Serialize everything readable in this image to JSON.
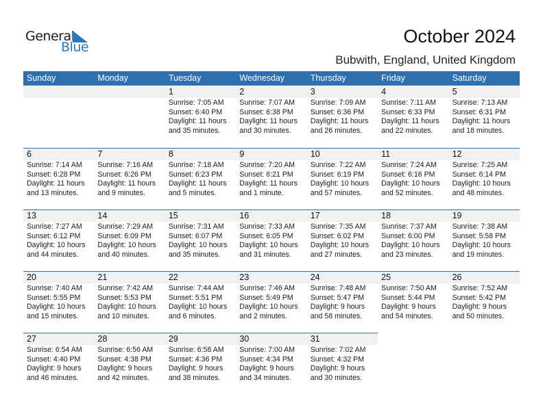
{
  "logo": {
    "text_general": "General",
    "text_blue": "Blue"
  },
  "title": "October 2024",
  "subtitle": "Bubwith, England, United Kingdom",
  "colors": {
    "header": "#2e6fb0",
    "band": "#f1f1f1"
  },
  "weekdays": [
    "Sunday",
    "Monday",
    "Tuesday",
    "Wednesday",
    "Thursday",
    "Friday",
    "Saturday"
  ],
  "first_weekday_index": 2,
  "days": [
    {
      "day": "1",
      "sunrise": "Sunrise: 7:05 AM",
      "sunset": "Sunset: 6:40 PM",
      "daylight1": "Daylight: 11 hours",
      "daylight2": "and 35 minutes."
    },
    {
      "day": "2",
      "sunrise": "Sunrise: 7:07 AM",
      "sunset": "Sunset: 6:38 PM",
      "daylight1": "Daylight: 11 hours",
      "daylight2": "and 30 minutes."
    },
    {
      "day": "3",
      "sunrise": "Sunrise: 7:09 AM",
      "sunset": "Sunset: 6:36 PM",
      "daylight1": "Daylight: 11 hours",
      "daylight2": "and 26 minutes."
    },
    {
      "day": "4",
      "sunrise": "Sunrise: 7:11 AM",
      "sunset": "Sunset: 6:33 PM",
      "daylight1": "Daylight: 11 hours",
      "daylight2": "and 22 minutes."
    },
    {
      "day": "5",
      "sunrise": "Sunrise: 7:13 AM",
      "sunset": "Sunset: 6:31 PM",
      "daylight1": "Daylight: 11 hours",
      "daylight2": "and 18 minutes."
    },
    {
      "day": "6",
      "sunrise": "Sunrise: 7:14 AM",
      "sunset": "Sunset: 6:28 PM",
      "daylight1": "Daylight: 11 hours",
      "daylight2": "and 13 minutes."
    },
    {
      "day": "7",
      "sunrise": "Sunrise: 7:16 AM",
      "sunset": "Sunset: 6:26 PM",
      "daylight1": "Daylight: 11 hours",
      "daylight2": "and 9 minutes."
    },
    {
      "day": "8",
      "sunrise": "Sunrise: 7:18 AM",
      "sunset": "Sunset: 6:23 PM",
      "daylight1": "Daylight: 11 hours",
      "daylight2": "and 5 minutes."
    },
    {
      "day": "9",
      "sunrise": "Sunrise: 7:20 AM",
      "sunset": "Sunset: 6:21 PM",
      "daylight1": "Daylight: 11 hours",
      "daylight2": "and 1 minute."
    },
    {
      "day": "10",
      "sunrise": "Sunrise: 7:22 AM",
      "sunset": "Sunset: 6:19 PM",
      "daylight1": "Daylight: 10 hours",
      "daylight2": "and 57 minutes."
    },
    {
      "day": "11",
      "sunrise": "Sunrise: 7:24 AM",
      "sunset": "Sunset: 6:16 PM",
      "daylight1": "Daylight: 10 hours",
      "daylight2": "and 52 minutes."
    },
    {
      "day": "12",
      "sunrise": "Sunrise: 7:25 AM",
      "sunset": "Sunset: 6:14 PM",
      "daylight1": "Daylight: 10 hours",
      "daylight2": "and 48 minutes."
    },
    {
      "day": "13",
      "sunrise": "Sunrise: 7:27 AM",
      "sunset": "Sunset: 6:12 PM",
      "daylight1": "Daylight: 10 hours",
      "daylight2": "and 44 minutes."
    },
    {
      "day": "14",
      "sunrise": "Sunrise: 7:29 AM",
      "sunset": "Sunset: 6:09 PM",
      "daylight1": "Daylight: 10 hours",
      "daylight2": "and 40 minutes."
    },
    {
      "day": "15",
      "sunrise": "Sunrise: 7:31 AM",
      "sunset": "Sunset: 6:07 PM",
      "daylight1": "Daylight: 10 hours",
      "daylight2": "and 35 minutes."
    },
    {
      "day": "16",
      "sunrise": "Sunrise: 7:33 AM",
      "sunset": "Sunset: 6:05 PM",
      "daylight1": "Daylight: 10 hours",
      "daylight2": "and 31 minutes."
    },
    {
      "day": "17",
      "sunrise": "Sunrise: 7:35 AM",
      "sunset": "Sunset: 6:02 PM",
      "daylight1": "Daylight: 10 hours",
      "daylight2": "and 27 minutes."
    },
    {
      "day": "18",
      "sunrise": "Sunrise: 7:37 AM",
      "sunset": "Sunset: 6:00 PM",
      "daylight1": "Daylight: 10 hours",
      "daylight2": "and 23 minutes."
    },
    {
      "day": "19",
      "sunrise": "Sunrise: 7:38 AM",
      "sunset": "Sunset: 5:58 PM",
      "daylight1": "Daylight: 10 hours",
      "daylight2": "and 19 minutes."
    },
    {
      "day": "20",
      "sunrise": "Sunrise: 7:40 AM",
      "sunset": "Sunset: 5:55 PM",
      "daylight1": "Daylight: 10 hours",
      "daylight2": "and 15 minutes."
    },
    {
      "day": "21",
      "sunrise": "Sunrise: 7:42 AM",
      "sunset": "Sunset: 5:53 PM",
      "daylight1": "Daylight: 10 hours",
      "daylight2": "and 10 minutes."
    },
    {
      "day": "22",
      "sunrise": "Sunrise: 7:44 AM",
      "sunset": "Sunset: 5:51 PM",
      "daylight1": "Daylight: 10 hours",
      "daylight2": "and 6 minutes."
    },
    {
      "day": "23",
      "sunrise": "Sunrise: 7:46 AM",
      "sunset": "Sunset: 5:49 PM",
      "daylight1": "Daylight: 10 hours",
      "daylight2": "and 2 minutes."
    },
    {
      "day": "24",
      "sunrise": "Sunrise: 7:48 AM",
      "sunset": "Sunset: 5:47 PM",
      "daylight1": "Daylight: 9 hours",
      "daylight2": "and 58 minutes."
    },
    {
      "day": "25",
      "sunrise": "Sunrise: 7:50 AM",
      "sunset": "Sunset: 5:44 PM",
      "daylight1": "Daylight: 9 hours",
      "daylight2": "and 54 minutes."
    },
    {
      "day": "26",
      "sunrise": "Sunrise: 7:52 AM",
      "sunset": "Sunset: 5:42 PM",
      "daylight1": "Daylight: 9 hours",
      "daylight2": "and 50 minutes."
    },
    {
      "day": "27",
      "sunrise": "Sunrise: 6:54 AM",
      "sunset": "Sunset: 4:40 PM",
      "daylight1": "Daylight: 9 hours",
      "daylight2": "and 46 minutes."
    },
    {
      "day": "28",
      "sunrise": "Sunrise: 6:56 AM",
      "sunset": "Sunset: 4:38 PM",
      "daylight1": "Daylight: 9 hours",
      "daylight2": "and 42 minutes."
    },
    {
      "day": "29",
      "sunrise": "Sunrise: 6:58 AM",
      "sunset": "Sunset: 4:36 PM",
      "daylight1": "Daylight: 9 hours",
      "daylight2": "and 38 minutes."
    },
    {
      "day": "30",
      "sunrise": "Sunrise: 7:00 AM",
      "sunset": "Sunset: 4:34 PM",
      "daylight1": "Daylight: 9 hours",
      "daylight2": "and 34 minutes."
    },
    {
      "day": "31",
      "sunrise": "Sunrise: 7:02 AM",
      "sunset": "Sunset: 4:32 PM",
      "daylight1": "Daylight: 9 hours",
      "daylight2": "and 30 minutes."
    }
  ]
}
